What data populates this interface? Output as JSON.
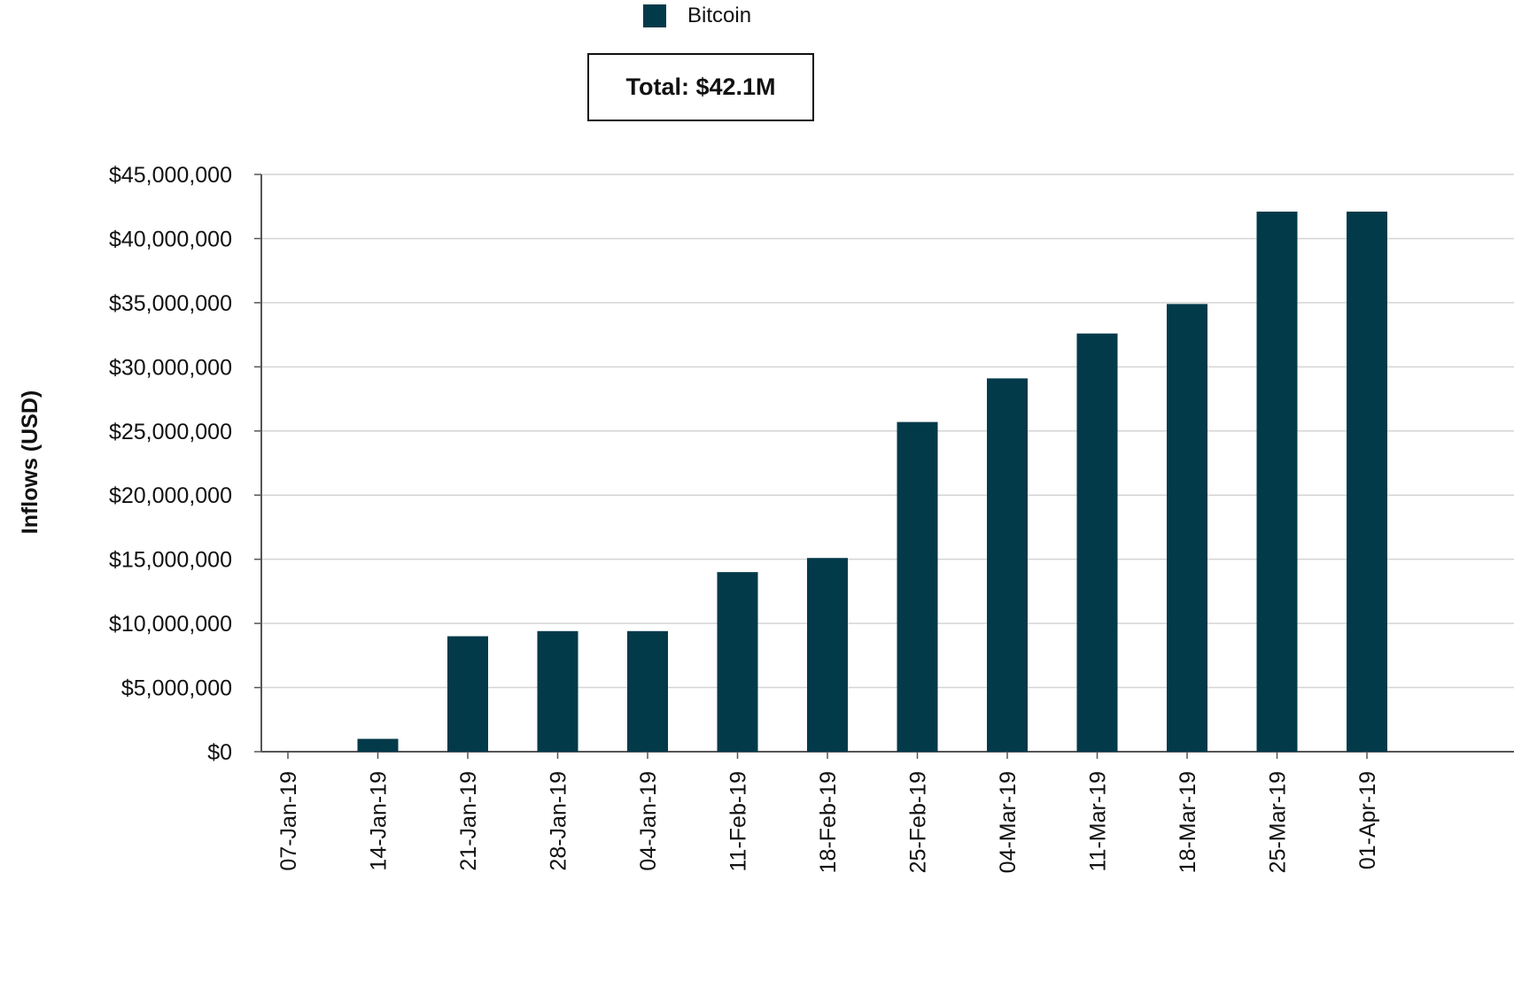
{
  "chart_data": {
    "type": "bar",
    "ylabel": "Inflows (USD)",
    "xlabel": "",
    "ylim": [
      0,
      45000000
    ],
    "yticks": [
      0,
      5000000,
      10000000,
      15000000,
      20000000,
      25000000,
      30000000,
      35000000,
      40000000,
      45000000
    ],
    "ytick_labels": [
      "$0",
      "$5,000,000",
      "$10,000,000",
      "$15,000,000",
      "$20,000,000",
      "$25,000,000",
      "$30,000,000",
      "$35,000,000",
      "$40,000,000",
      "$45,000,000"
    ],
    "categories": [
      "07-Jan-19",
      "14-Jan-19",
      "21-Jan-19",
      "28-Jan-19",
      "04-Jan-19",
      "11-Feb-19",
      "18-Feb-19",
      "25-Feb-19",
      "04-Mar-19",
      "11-Mar-19",
      "18-Mar-19",
      "25-Mar-19",
      "01-Apr-19"
    ],
    "series": [
      {
        "name": "Bitcoin",
        "color": "#023a4a",
        "values": [
          0,
          1000000,
          9000000,
          9400000,
          9400000,
          14000000,
          15100000,
          25700000,
          29100000,
          32600000,
          34900000,
          42100000,
          42100000
        ]
      }
    ],
    "legend": "top",
    "grid": true,
    "annotation": "Total: $42.1M"
  }
}
